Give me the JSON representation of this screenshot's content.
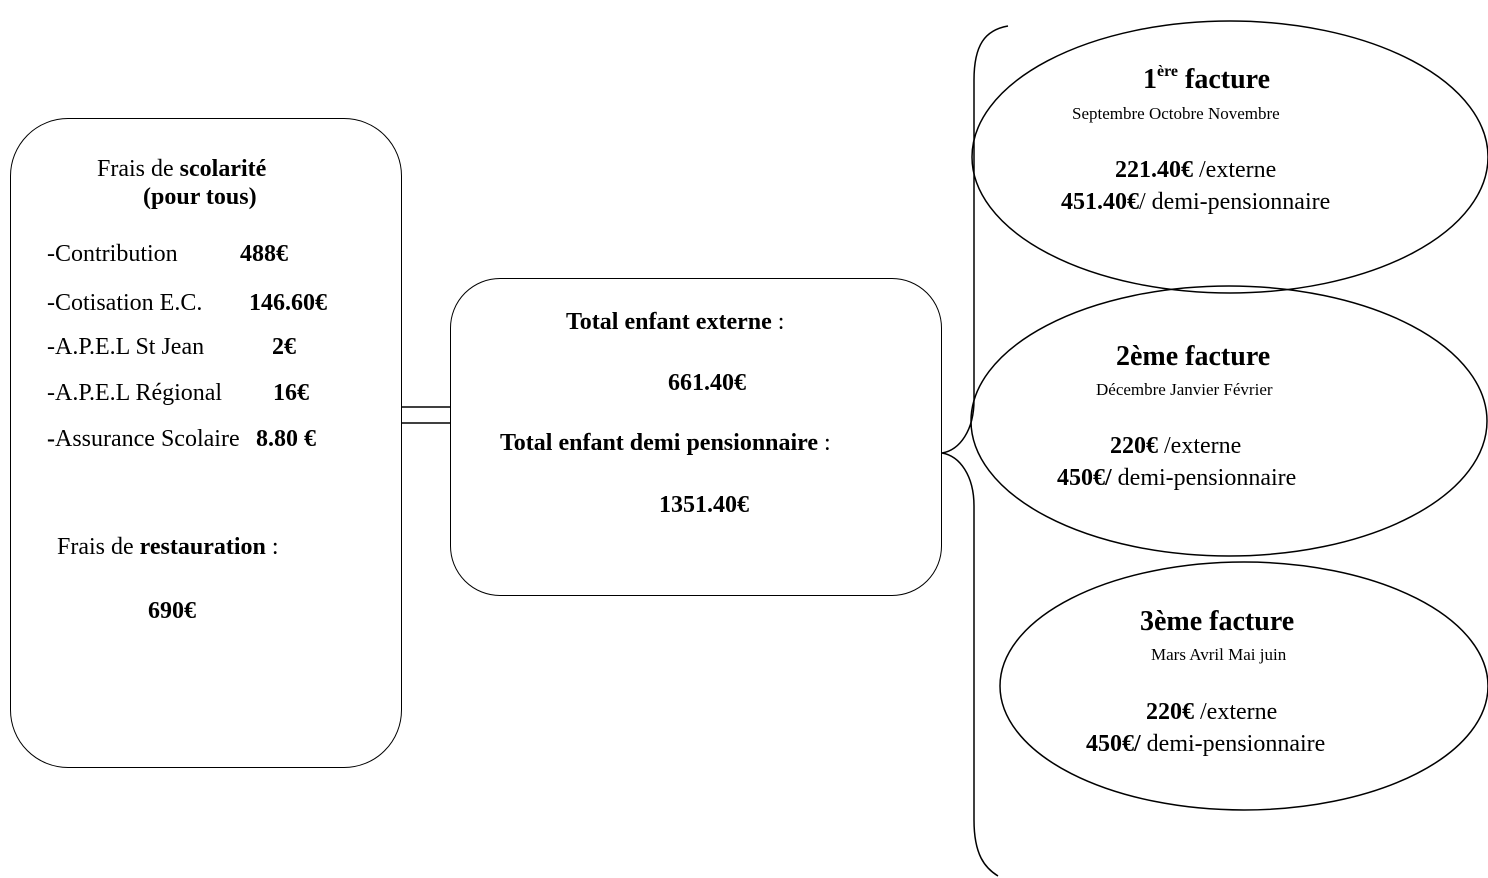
{
  "left_box": {
    "title_prefix": "Frais de ",
    "title_bold": "scolarité",
    "subtitle": "(pour tous)",
    "items": [
      {
        "label": "-Contribution",
        "amount": "488€"
      },
      {
        "label": "-Cotisation E.C.",
        "amount": "146.60€"
      },
      {
        "label": "-A.P.E.L St Jean",
        "amount": "2€"
      },
      {
        "label": "-A.P.E.L Régional",
        "amount": "16€"
      },
      {
        "label_bold_dash": "-",
        "label": "Assurance Scolaire",
        "amount": "8.80 €"
      }
    ],
    "restauration_prefix": "Frais de ",
    "restauration_bold": "restauration",
    "restauration_suffix": " :",
    "restauration_amount": "690€"
  },
  "middle_box": {
    "externe_label": "Total enfant externe",
    "externe_colon": " :",
    "externe_amount": "661.40€",
    "demi_label": "Total enfant demi pensionnaire",
    "demi_colon": " :",
    "demi_amount": "1351.40€"
  },
  "invoices": [
    {
      "num": "1",
      "sup": "ère",
      "title_suffix": " facture",
      "months": "Septembre Octobre Novembre",
      "externe_amount": "221.40€",
      "externe_label": " /externe",
      "demi_amount": "451.40€",
      "demi_label": "/ demi-pensionnaire"
    },
    {
      "title": "2ème facture",
      "months": "Décembre Janvier Février",
      "externe_amount": "220€",
      "externe_label": " /externe",
      "demi_amount": "450€/",
      "demi_label": " demi-pensionnaire"
    },
    {
      "title": "3ème facture",
      "months": "Mars Avril Mai juin",
      "externe_amount": "220€",
      "externe_label": " /externe",
      "demi_amount": "450€/",
      "demi_label": " demi-pensionnaire"
    }
  ]
}
